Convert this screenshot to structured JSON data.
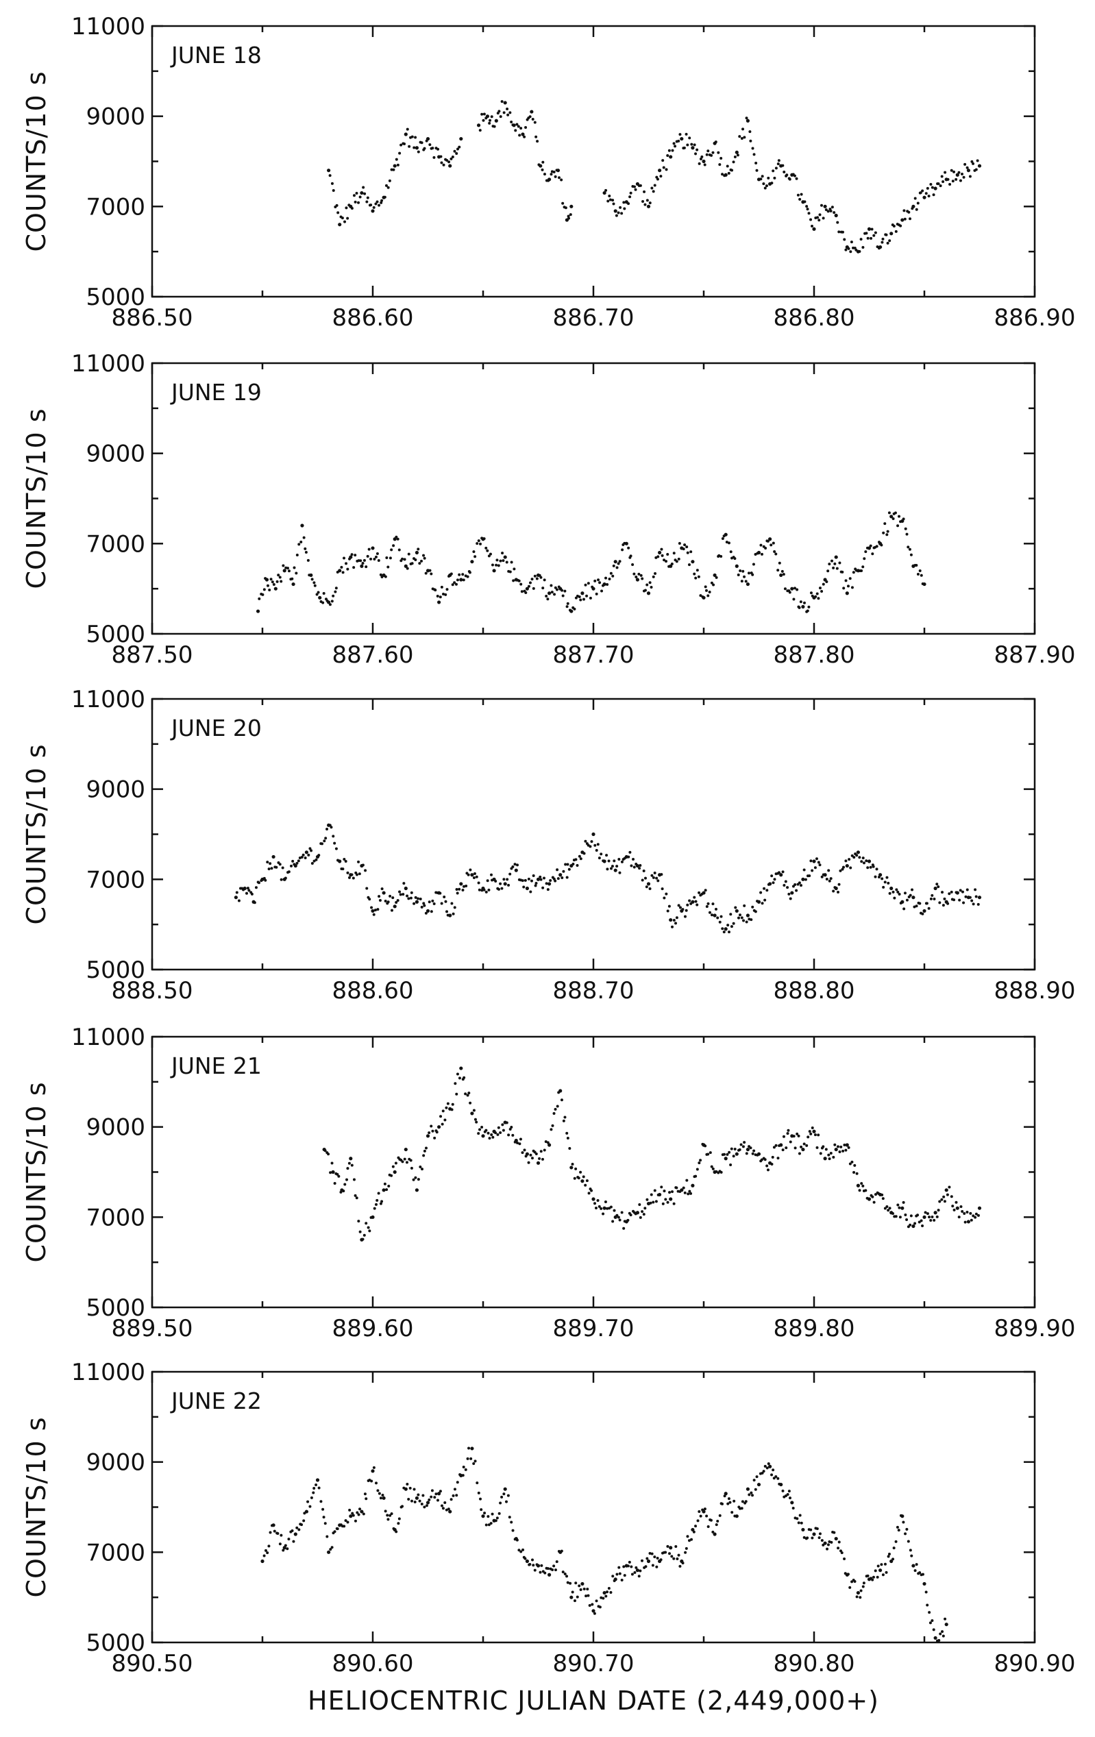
{
  "chart_data": [
    {
      "type": "scatter",
      "label": "JUNE 18",
      "ylabel": "COUNTS/10 s",
      "xlim": [
        886.5,
        886.9
      ],
      "ylim": [
        5000,
        11000
      ],
      "xticks": [
        "886.50",
        "886.60",
        "886.70",
        "886.80",
        "886.90"
      ],
      "yticks": [
        "5000",
        "7000",
        "9000",
        "11000"
      ],
      "segments": [
        {
          "x": [
            886.58,
            886.585,
            886.59,
            886.595,
            886.6,
            886.605,
            886.61,
            886.615,
            886.62,
            886.625,
            886.63,
            886.635,
            886.64
          ],
          "y": [
            7800,
            6600,
            7000,
            7300,
            6900,
            7200,
            7900,
            8600,
            8300,
            8500,
            8100,
            7900,
            8500
          ]
        },
        {
          "x": [
            886.648,
            886.652,
            886.656,
            886.66,
            886.664,
            886.668,
            886.672,
            886.676,
            886.68,
            886.684,
            886.688,
            886.69
          ],
          "y": [
            8800,
            9000,
            8900,
            9300,
            8800,
            8600,
            9100,
            7900,
            7600,
            7800,
            6700,
            7000
          ]
        },
        {
          "x": [
            886.705,
            886.71,
            886.715,
            886.72,
            886.725,
            886.73,
            886.735,
            886.74,
            886.745,
            886.75,
            886.755,
            886.76,
            886.765,
            886.77,
            886.775,
            886.78,
            886.785,
            886.79,
            886.795,
            886.8,
            886.805,
            886.81,
            886.815,
            886.82,
            886.825,
            886.83,
            886.835,
            886.84,
            886.845,
            886.85,
            886.855,
            886.86,
            886.865,
            886.87,
            886.875
          ],
          "y": [
            7300,
            6900,
            7100,
            7500,
            7000,
            7800,
            8100,
            8500,
            8300,
            8000,
            8400,
            7700,
            8200,
            8900,
            7600,
            7500,
            7900,
            7700,
            7100,
            6500,
            7000,
            6800,
            6100,
            6000,
            6500,
            6100,
            6400,
            6700,
            7000,
            7200,
            7400,
            7600,
            7700,
            7800,
            7900
          ]
        }
      ]
    },
    {
      "type": "scatter",
      "label": "JUNE 19",
      "ylabel": "COUNTS/10 s",
      "xlim": [
        887.5,
        887.9
      ],
      "ylim": [
        5000,
        11000
      ],
      "xticks": [
        "887.50",
        "887.60",
        "887.70",
        "887.80",
        "887.90"
      ],
      "yticks": [
        "5000",
        "7000",
        "9000",
        "11000"
      ],
      "segments": [
        {
          "x": [
            887.548,
            887.552,
            887.556,
            887.56,
            887.564,
            887.568,
            887.572,
            887.576,
            887.58,
            887.585,
            887.59,
            887.595,
            887.6,
            887.605,
            887.61,
            887.615,
            887.62,
            887.625,
            887.63,
            887.635,
            887.64,
            887.645,
            887.65,
            887.655,
            887.66,
            887.665,
            887.67,
            887.675,
            887.68,
            887.685,
            887.69,
            887.695,
            887.7,
            887.705,
            887.71,
            887.715,
            887.72,
            887.725,
            887.73,
            887.735,
            887.74,
            887.745,
            887.75,
            887.755,
            887.76,
            887.765,
            887.77,
            887.775,
            887.78,
            887.785,
            887.79,
            887.795,
            887.8,
            887.805,
            887.81,
            887.815,
            887.82,
            887.825,
            887.83,
            887.835,
            887.84,
            887.845,
            887.85
          ],
          "y": [
            5500,
            6200,
            6000,
            6400,
            6100,
            7400,
            6300,
            5800,
            5700,
            6400,
            6700,
            6500,
            6900,
            6300,
            7100,
            6500,
            6800,
            6400,
            5700,
            6300,
            6200,
            6600,
            7100,
            6400,
            6700,
            6200,
            6000,
            6300,
            5900,
            6000,
            5500,
            5900,
            6000,
            6100,
            6600,
            7000,
            6200,
            5900,
            6800,
            6500,
            6900,
            6600,
            5800,
            6300,
            7200,
            6500,
            6100,
            6800,
            7100,
            6300,
            6000,
            5600,
            5800,
            6200,
            6700,
            5900,
            6400,
            6900,
            7000,
            7600,
            7500,
            6500,
            6100
          ]
        }
      ]
    },
    {
      "type": "scatter",
      "label": "JUNE 20",
      "ylabel": "COUNTS/10 s",
      "xlim": [
        888.5,
        888.9
      ],
      "ylim": [
        5000,
        11000
      ],
      "xticks": [
        "888.50",
        "888.60",
        "888.70",
        "888.80",
        "888.90"
      ],
      "yticks": [
        "5000",
        "7000",
        "9000",
        "11000"
      ],
      "segments": [
        {
          "x": [
            888.538,
            888.542,
            888.546,
            888.55,
            888.555,
            888.56,
            888.565,
            888.57,
            888.575,
            888.58,
            888.585,
            888.59,
            888.595,
            888.6,
            888.605,
            888.61,
            888.615,
            888.62,
            888.625,
            888.63,
            888.635,
            888.64,
            888.645,
            888.65,
            888.655,
            888.66,
            888.665,
            888.67,
            888.675,
            888.68,
            888.685,
            888.69,
            888.695,
            888.7,
            888.705,
            888.71,
            888.715,
            888.72,
            888.725,
            888.73,
            888.735,
            888.74,
            888.745,
            888.75,
            888.755,
            888.76,
            888.765,
            888.77,
            888.775,
            888.78,
            888.785,
            888.79,
            888.795,
            888.8,
            888.805,
            888.81,
            888.815,
            888.82,
            888.825,
            888.83,
            888.835,
            888.84,
            888.845,
            888.85,
            888.855,
            888.86,
            888.865,
            888.87,
            888.875
          ],
          "y": [
            6600,
            6800,
            6500,
            7000,
            7500,
            7000,
            7300,
            7600,
            7500,
            8200,
            7400,
            7100,
            7300,
            6300,
            6700,
            6400,
            6800,
            6500,
            6300,
            6700,
            6200,
            6900,
            7100,
            6800,
            7000,
            6900,
            7200,
            6800,
            7000,
            6900,
            7100,
            7300,
            7600,
            8000,
            7400,
            7200,
            7500,
            7300,
            6900,
            7100,
            6100,
            6300,
            6500,
            6700,
            6200,
            5900,
            6300,
            6200,
            6500,
            6900,
            7100,
            6700,
            7000,
            7400,
            7100,
            6800,
            7300,
            7600,
            7400,
            7100,
            6800,
            6500,
            6600,
            6300,
            6800,
            6500,
            6700,
            6600,
            6600
          ]
        }
      ]
    },
    {
      "type": "scatter",
      "label": "JUNE 21",
      "ylabel": "COUNTS/10 s",
      "xlim": [
        889.5,
        889.9
      ],
      "ylim": [
        5000,
        11000
      ],
      "xticks": [
        "889.50",
        "889.60",
        "889.70",
        "889.80",
        "889.90"
      ],
      "yticks": [
        "5000",
        "7000",
        "9000",
        "11000"
      ],
      "segments": [
        {
          "x": [
            889.578,
            889.582,
            889.586,
            889.59,
            889.595,
            889.6,
            889.605,
            889.61,
            889.615,
            889.62,
            889.625,
            889.63,
            889.635,
            889.64,
            889.645,
            889.65,
            889.655,
            889.66,
            889.665,
            889.67,
            889.675,
            889.68,
            889.685,
            889.69,
            889.695,
            889.7,
            889.705,
            889.71,
            889.715,
            889.72,
            889.725,
            889.73,
            889.735,
            889.74,
            889.745,
            889.75,
            889.755,
            889.76,
            889.765,
            889.77,
            889.775,
            889.78,
            889.785,
            889.79,
            889.795,
            889.8,
            889.805,
            889.81,
            889.815,
            889.82,
            889.825,
            889.83,
            889.835,
            889.84,
            889.845,
            889.85,
            889.855,
            889.86,
            889.865,
            889.87,
            889.875
          ],
          "y": [
            8500,
            8000,
            7600,
            8300,
            6500,
            7000,
            7600,
            8000,
            8500,
            7600,
            8800,
            9000,
            9400,
            10300,
            9300,
            8800,
            8900,
            9100,
            8700,
            8400,
            8200,
            8600,
            9800,
            8100,
            7800,
            7400,
            7200,
            7000,
            6900,
            7100,
            7300,
            7500,
            7400,
            7600,
            7700,
            8600,
            8000,
            8300,
            8400,
            8500,
            8400,
            8200,
            8600,
            8800,
            8500,
            8900,
            8300,
            8500,
            8600,
            7700,
            7400,
            7500,
            7100,
            7200,
            6800,
            7000,
            7100,
            7600,
            7200,
            6900,
            7200
          ]
        }
      ]
    },
    {
      "type": "scatter",
      "label": "JUNE 22",
      "ylabel": "COUNTS/10 s",
      "xlabel": "HELIOCENTRIC JULIAN DATE (2,449,000+)",
      "xlim": [
        890.5,
        890.9
      ],
      "ylim": [
        5000,
        11000
      ],
      "xticks": [
        "890.50",
        "890.60",
        "890.70",
        "890.80",
        "890.90"
      ],
      "yticks": [
        "5000",
        "7000",
        "9000",
        "11000"
      ],
      "segments": [
        {
          "x": [
            890.55,
            890.555,
            890.56,
            890.565,
            890.57,
            890.575,
            890.58,
            890.585,
            890.59,
            890.595,
            890.6,
            890.605,
            890.61,
            890.615,
            890.62,
            890.625,
            890.63,
            890.635,
            890.64,
            890.645,
            890.65,
            890.655,
            890.66,
            890.665,
            890.67,
            890.675,
            890.68,
            890.685,
            890.69,
            890.695,
            890.7,
            890.705,
            890.71,
            890.715,
            890.72,
            890.725,
            890.73,
            890.735,
            890.74,
            890.745,
            890.75,
            890.755,
            890.76,
            890.765,
            890.77,
            890.775,
            890.78,
            890.785,
            890.79,
            890.795,
            890.8,
            890.805,
            890.81,
            890.815,
            890.82,
            890.825,
            890.83,
            890.835,
            890.84,
            890.845,
            890.85,
            890.855,
            890.86
          ],
          "y": [
            6800,
            7600,
            7100,
            7400,
            7900,
            8600,
            7000,
            7600,
            7800,
            7900,
            8800,
            8200,
            7500,
            8400,
            8200,
            8100,
            8300,
            7900,
            8700,
            9300,
            7800,
            7700,
            8400,
            7300,
            6800,
            6700,
            6500,
            7000,
            6000,
            6300,
            5700,
            6100,
            6400,
            6700,
            6600,
            6800,
            6800,
            7100,
            6800,
            7500,
            7900,
            7400,
            8300,
            7800,
            8400,
            8500,
            8900,
            8500,
            8100,
            7500,
            7400,
            7200,
            7300,
            6500,
            6100,
            6400,
            6600,
            6800,
            7800,
            6700,
            6300,
            5100,
            5400
          ]
        }
      ]
    }
  ]
}
